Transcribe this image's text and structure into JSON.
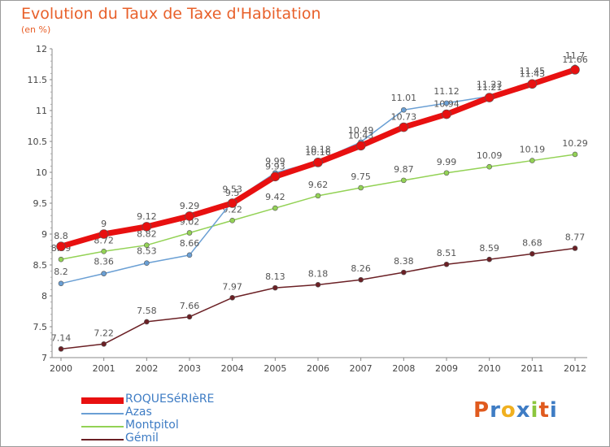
{
  "chart_data": {
    "type": "line",
    "title": "Evolution du Taux de Taxe d'Habitation",
    "subtitle": "(en %)",
    "x": [
      "2000",
      "2001",
      "2002",
      "2003",
      "2004",
      "2005",
      "2006",
      "2007",
      "2008",
      "2009",
      "2010",
      "2011",
      "2012"
    ],
    "ylim": [
      7,
      12
    ],
    "yticks": [
      "7",
      "7.5",
      "8",
      "8.5",
      "9",
      "9.5",
      "10",
      "10.5",
      "11",
      "11.5",
      "12"
    ],
    "grid": false,
    "legend_position": "bottom-left",
    "series": [
      {
        "name": "ROQUESéRIèRE",
        "color": "#e81010",
        "values": [
          8.8,
          9,
          9.12,
          9.29,
          9.5,
          9.93,
          10.16,
          10.43,
          10.73,
          10.94,
          11.21,
          11.43,
          11.66
        ],
        "labels": [
          "8.8",
          "9",
          "9.12",
          "9.29",
          "9.5",
          "9.93",
          "10.16",
          "10.43",
          "10.73",
          "10.94",
          "11.21",
          "11.43",
          "11.66"
        ]
      },
      {
        "name": "Azas",
        "color": "#6a9fd4",
        "values": [
          8.2,
          8.36,
          8.53,
          8.66,
          9.53,
          9.99,
          10.18,
          10.49,
          11.01,
          11.12,
          11.23,
          11.45,
          11.7
        ],
        "labels": [
          "8.2",
          "8.36",
          "8.53",
          "8.66",
          "9.53",
          "9.99",
          "10.18",
          "10.49",
          "11.01",
          "11.12",
          "11.23",
          "11.45",
          "11.7"
        ]
      },
      {
        "name": "Montpitol",
        "color": "#93d255",
        "values": [
          8.59,
          8.72,
          8.82,
          9.02,
          9.22,
          9.42,
          9.62,
          9.75,
          9.87,
          9.99,
          10.09,
          10.19,
          10.29
        ],
        "labels": [
          "8.59",
          "8.72",
          "8.82",
          "9.02",
          "9.22",
          "9.42",
          "9.62",
          "9.75",
          "9.87",
          "9.99",
          "10.09",
          "10.19",
          "10.29"
        ]
      },
      {
        "name": "Gémil",
        "color": "#6b2025",
        "values": [
          7.14,
          7.22,
          7.58,
          7.66,
          7.97,
          8.13,
          8.18,
          8.26,
          8.38,
          8.51,
          8.59,
          8.68,
          8.77
        ],
        "labels": [
          "7.14",
          "7.22",
          "7.58",
          "7.66",
          "7.97",
          "8.13",
          "8.18",
          "8.26",
          "8.38",
          "8.51",
          "8.59",
          "8.68",
          "8.77"
        ]
      }
    ]
  },
  "logo": {
    "letters": [
      "P",
      "r",
      "o",
      "x",
      "i",
      "t",
      "i"
    ],
    "colors": [
      "#e05a1e",
      "#3e7cc4",
      "#f0b020",
      "#3e7cc4",
      "#8cc63e",
      "#e05a1e",
      "#3e7cc4"
    ]
  }
}
